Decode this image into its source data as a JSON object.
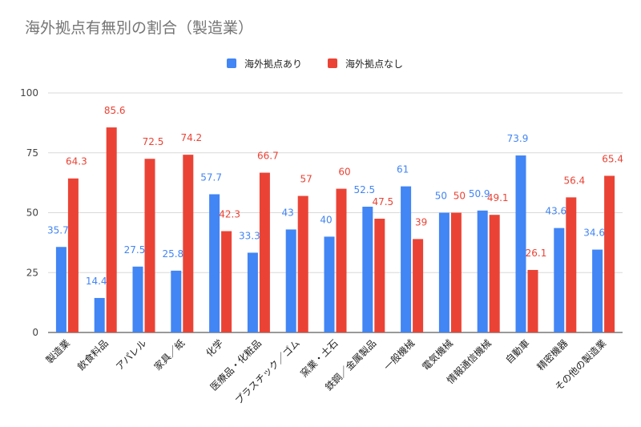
{
  "chart_data": {
    "type": "bar",
    "title": "海外拠点有無別の割合（製造業）",
    "categories": [
      "製造業",
      "飲食料品",
      "アパレル",
      "家具／紙",
      "化学",
      "医療品・化粧品",
      "プラスチック／ゴム",
      "窯業・土石",
      "鉄鋼／金属製品",
      "一般機械",
      "電気機械",
      "情報通信機械",
      "自動車",
      "精密機器",
      "その他の製造業"
    ],
    "series": [
      {
        "name": "海外拠点あり",
        "color": "#4285f4",
        "values": [
          35.7,
          14.4,
          27.5,
          25.8,
          57.7,
          33.3,
          43,
          40,
          52.5,
          61,
          50,
          50.9,
          73.9,
          43.6,
          34.6
        ]
      },
      {
        "name": "海外拠点なし",
        "color": "#ea4335",
        "values": [
          64.3,
          85.6,
          72.5,
          74.2,
          42.3,
          66.7,
          57,
          60,
          47.5,
          39,
          50,
          49.1,
          26.1,
          56.4,
          65.4
        ]
      }
    ],
    "value_labels": [
      [
        "35.7",
        "14.4",
        "27.5",
        "25.8",
        "57.7",
        "33.3",
        "43",
        "40",
        "52.5",
        "61",
        "50",
        "50.9",
        "73.9",
        "43.6",
        "34.6"
      ],
      [
        "64.3",
        "85.6",
        "72.5",
        "74.2",
        "42.3",
        "66.7",
        "57",
        "60",
        "47.5",
        "39",
        "50",
        "49.1",
        "26.1",
        "56.4",
        "65.4"
      ]
    ],
    "y_ticks": [
      "0",
      "25",
      "50",
      "75",
      "100"
    ],
    "ylim": [
      0,
      100
    ],
    "grid": true,
    "legend_position": "top-center"
  }
}
